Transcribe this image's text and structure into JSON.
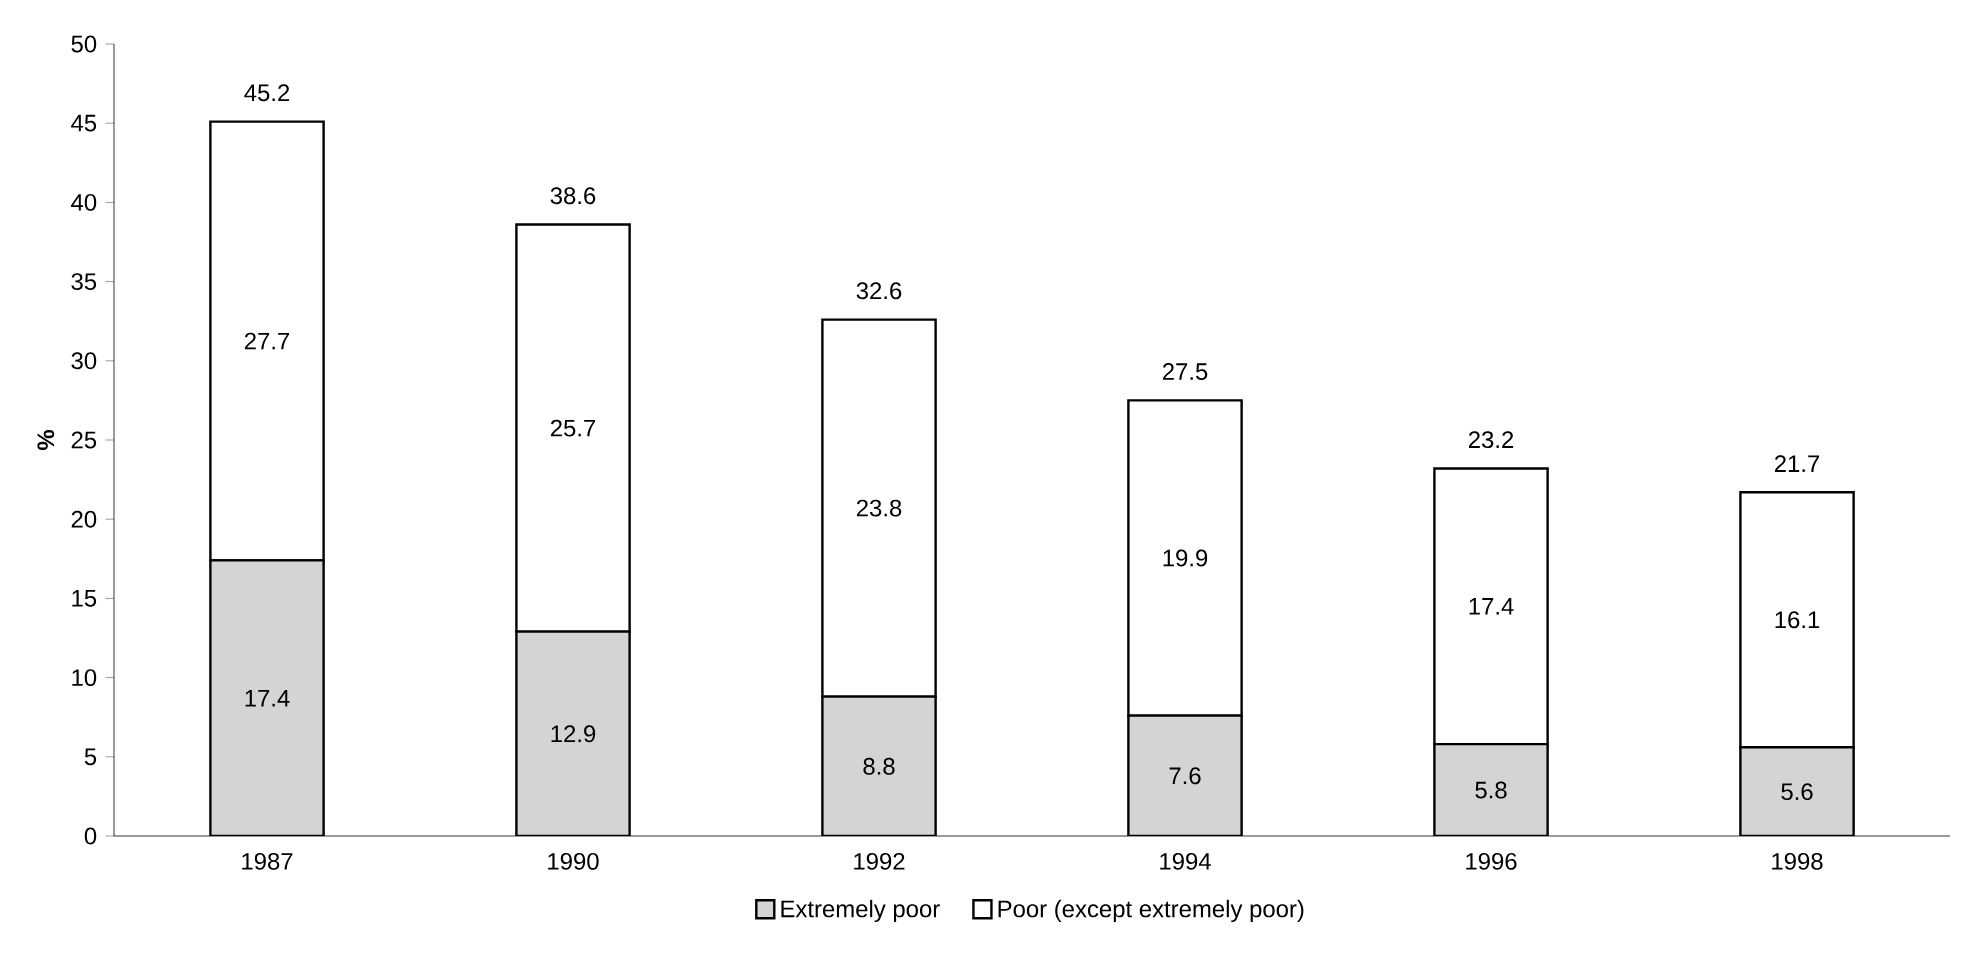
{
  "chart_data": {
    "type": "bar",
    "stacked": true,
    "ylabel": "%",
    "categories": [
      "1987",
      "1990",
      "1992",
      "1994",
      "1996",
      "1998"
    ],
    "series": [
      {
        "name": "Extremely poor",
        "color": "#d4d4d4",
        "values": [
          17.4,
          12.9,
          8.8,
          7.6,
          5.8,
          5.6
        ]
      },
      {
        "name": "Poor (except extremely poor)",
        "color": "#ffffff",
        "values": [
          27.7,
          25.7,
          23.8,
          19.9,
          17.4,
          16.1
        ]
      }
    ],
    "ylim": [
      0,
      50
    ],
    "yticks": [
      0,
      5,
      10,
      15,
      20,
      25,
      30,
      35,
      40,
      45,
      50
    ],
    "data_labels": true,
    "totals": [
      "45.2",
      "38.6",
      "32.6",
      "27.5",
      "23.2",
      "21.7"
    ],
    "legend": "bottom",
    "grid": false
  }
}
